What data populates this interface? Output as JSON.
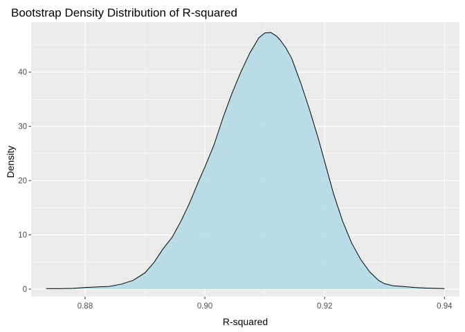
{
  "chart_data": {
    "type": "area",
    "title": "Bootstrap Density Distribution of R-squared",
    "xlabel": "R-squared",
    "ylabel": "Density",
    "xlim": [
      0.871,
      0.9425
    ],
    "ylim": [
      -1.4,
      49.2
    ],
    "x_ticks": [
      0.88,
      0.9,
      0.92,
      0.94
    ],
    "x_tick_labels": [
      "0.88",
      "0.90",
      "0.92",
      "0.94"
    ],
    "y_ticks": [
      0,
      10,
      20,
      30,
      40
    ],
    "y_tick_labels": [
      "0",
      "10",
      "20",
      "30",
      "40"
    ],
    "grid": true,
    "legend": "none",
    "colors": {
      "panel": "#ebebeb",
      "grid_major": "#ffffff",
      "fill": "#add8e6",
      "line": "#000000",
      "tick": "#333333"
    },
    "series": [
      {
        "x": [
          0.8735,
          0.876,
          0.878,
          0.88,
          0.882,
          0.884,
          0.886,
          0.888,
          0.89,
          0.8915,
          0.893,
          0.8945,
          0.896,
          0.8975,
          0.899,
          0.9,
          0.9015,
          0.903,
          0.9045,
          0.906,
          0.9075,
          0.909,
          0.91,
          0.911,
          0.912,
          0.9125,
          0.9135,
          0.9145,
          0.916,
          0.9175,
          0.919,
          0.92,
          0.9215,
          0.923,
          0.9245,
          0.926,
          0.9275,
          0.929,
          0.93,
          0.9315,
          0.933,
          0.935,
          0.937,
          0.9385,
          0.94
        ],
        "y": [
          0.1,
          0.1,
          0.15,
          0.3,
          0.4,
          0.5,
          0.9,
          1.6,
          3.0,
          4.9,
          7.4,
          9.5,
          12.5,
          16.0,
          20.0,
          22.5,
          26.5,
          31.5,
          36.0,
          40.0,
          43.5,
          46.3,
          47.2,
          47.3,
          46.6,
          46.0,
          44.5,
          42.5,
          38.0,
          33.0,
          27.5,
          23.5,
          17.5,
          12.5,
          8.5,
          5.5,
          3.2,
          1.6,
          1.0,
          0.6,
          0.5,
          0.3,
          0.2,
          0.15,
          0.1
        ]
      }
    ]
  }
}
